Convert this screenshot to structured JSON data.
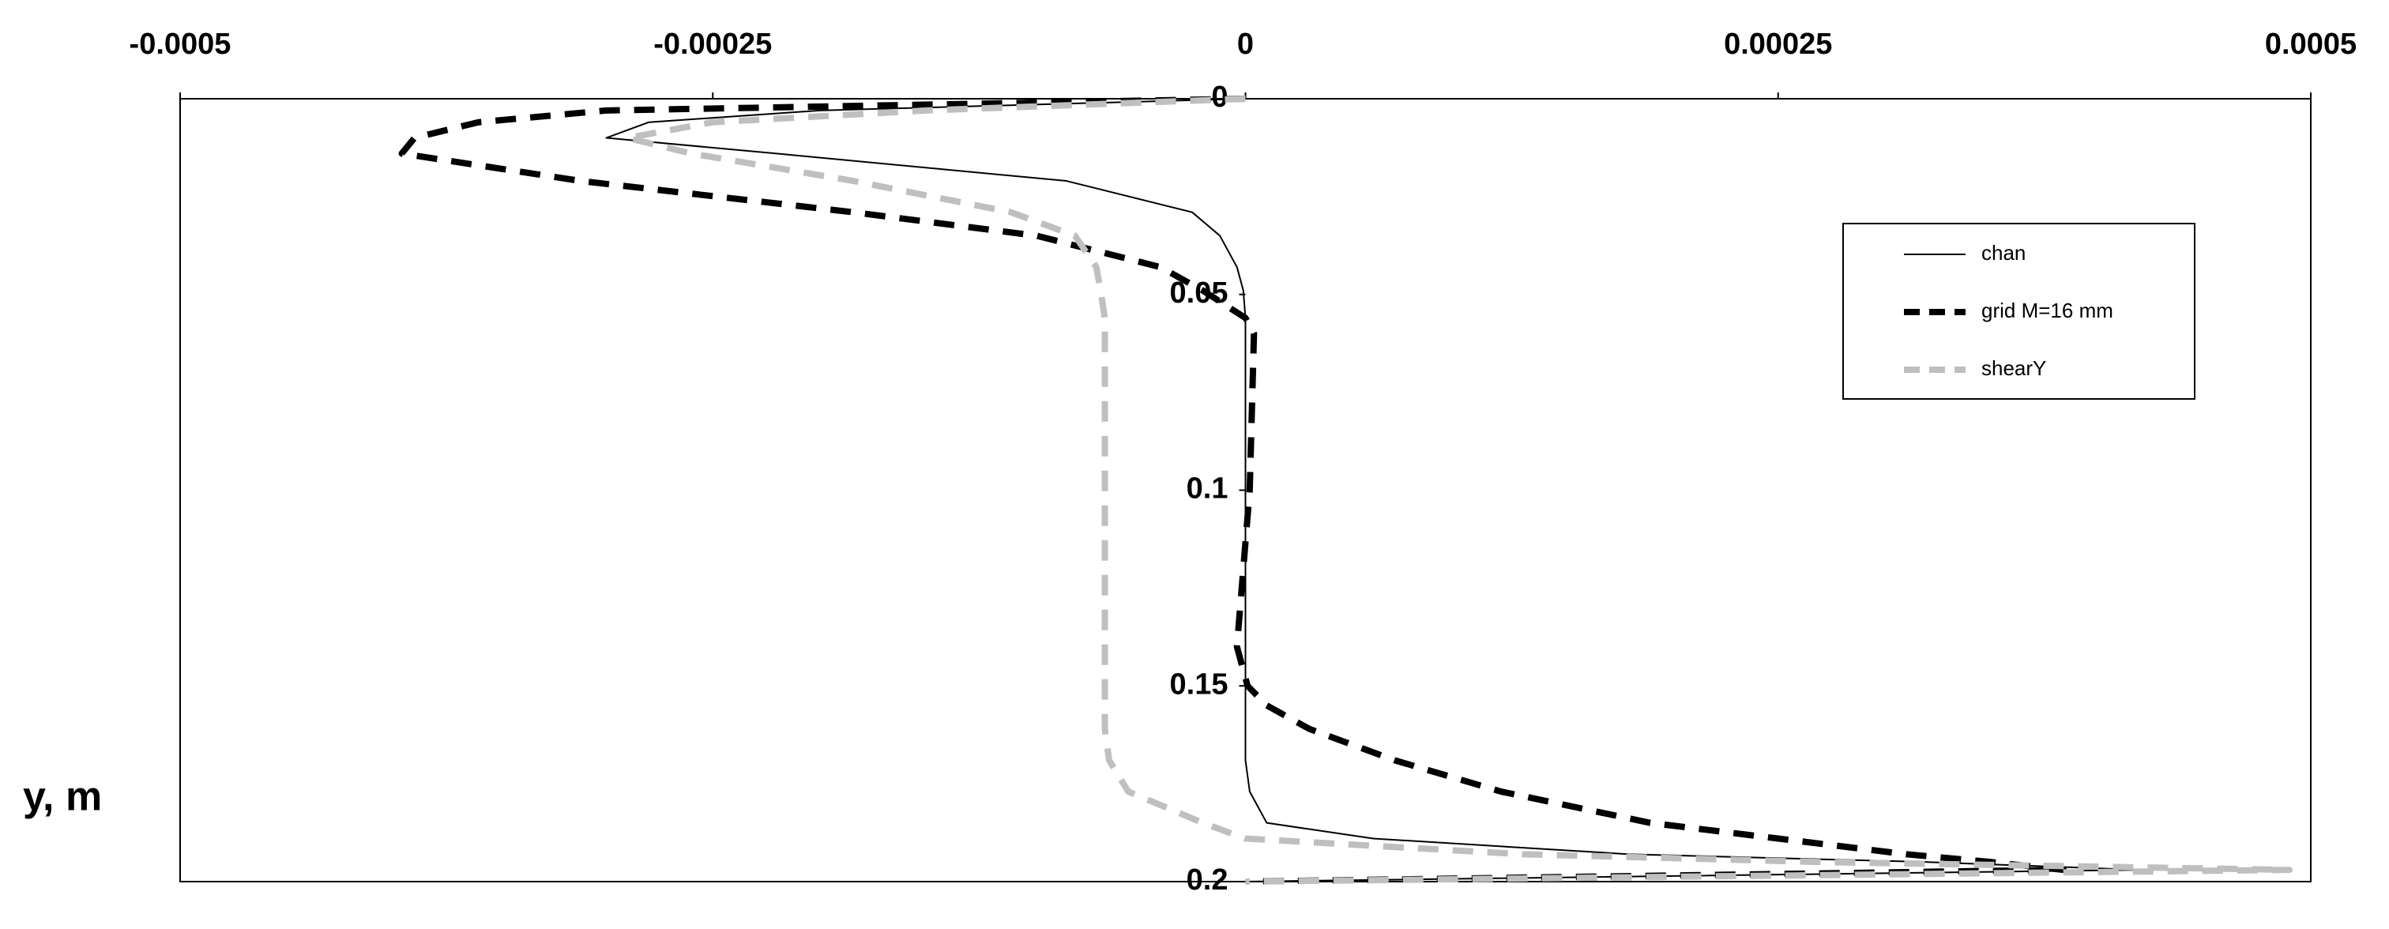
{
  "chart_data": {
    "type": "line",
    "ylabel": "y, m",
    "y": [
      0,
      0.003,
      0.006,
      0.01,
      0.014,
      0.021,
      0.029,
      0.035,
      0.043,
      0.049,
      0.056,
      0.06,
      0.1,
      0.14,
      0.15,
      0.155,
      0.161,
      0.169,
      0.177,
      0.185,
      0.189,
      0.193,
      0.195,
      0.197,
      0.2
    ],
    "series": [
      {
        "name": "chan",
        "color": "#000000",
        "values": [
          0,
          -0.0002,
          -0.00028,
          -0.0003,
          -0.00022,
          -8.4e-05,
          -2.5e-05,
          -1.2e-05,
          -4e-06,
          -1e-06,
          0,
          0,
          0,
          0,
          0,
          0,
          0,
          0,
          2e-06,
          1e-05,
          6e-05,
          0.00018,
          0.00032,
          0.00042,
          0
        ]
      },
      {
        "name": "grid M=16 mm",
        "color": "#000000",
        "values": [
          0,
          -0.0003,
          -0.00036,
          -0.00039,
          -0.000396,
          -0.000312,
          -0.000184,
          -9.8e-05,
          -4e-05,
          -2e-05,
          0,
          4e-06,
          2e-06,
          -4e-06,
          1e-06,
          1e-05,
          3e-05,
          7e-05,
          0.00012,
          0.00019,
          0.00025,
          0.00031,
          0.00035,
          0.000384,
          0
        ]
      },
      {
        "name": "shearY",
        "color": "#bfbfbf",
        "values": [
          0,
          -0.00015,
          -0.00025,
          -0.00029,
          -0.00026,
          -0.000184,
          -0.00011,
          -8e-05,
          -7e-05,
          -6.8e-05,
          -6.6e-05,
          -6.6e-05,
          -6.6e-05,
          -6.6e-05,
          -6.6e-05,
          -6.6e-05,
          -6.6e-05,
          -6.4e-05,
          -5.5e-05,
          -2e-05,
          0,
          0.00013,
          0.00027,
          0.00049,
          0
        ]
      }
    ],
    "xlim": [
      -0.0005,
      0.0005
    ],
    "xticks": [
      -0.0005,
      -0.00025,
      0,
      0.00025,
      0.0005
    ],
    "ylim": [
      0,
      0.2
    ],
    "yticks": [
      0,
      0.05,
      0.1,
      0.15,
      0.2
    ],
    "y_inverted": true,
    "legend": "upper right"
  }
}
